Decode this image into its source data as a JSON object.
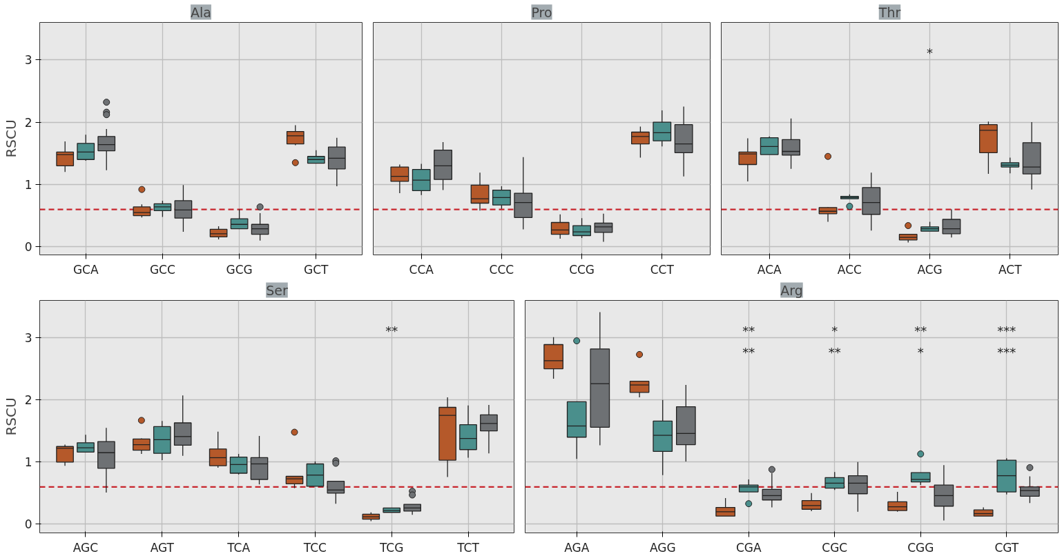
{
  "chart_data": [
    {
      "type": "box",
      "title": "Ala",
      "ylabel": "RSCU",
      "categories": [
        "GCA",
        "GCC",
        "GCG",
        "GCT"
      ],
      "ylim": [
        -0.13,
        3.6
      ],
      "yticks": [
        0,
        1,
        2,
        3
      ],
      "grid": true,
      "ref_lines": [
        {
          "axis": "y",
          "value": 0.6,
          "color": "#c8252c",
          "line_style": "dashed"
        }
      ],
      "series": [
        {
          "color": "#b5592a",
          "boxes": [
            {
              "low": 1.2,
              "q1": 1.3,
              "median": 1.48,
              "q3": 1.52,
              "high": 1.69
            },
            {
              "low": 0.47,
              "q1": 0.5,
              "median": 0.55,
              "q3": 0.64,
              "high": 0.68,
              "outliers": [
                0.92
              ]
            },
            {
              "low": 0.12,
              "q1": 0.16,
              "median": 0.21,
              "q3": 0.28,
              "high": 0.33
            },
            {
              "low": 1.63,
              "q1": 1.65,
              "median": 1.78,
              "q3": 1.85,
              "high": 1.95,
              "outliers": [
                1.35
              ]
            }
          ]
        },
        {
          "color": "#4a8f8c",
          "boxes": [
            {
              "low": 1.38,
              "q1": 1.4,
              "median": 1.52,
              "q3": 1.66,
              "high": 1.8
            },
            {
              "low": 0.48,
              "q1": 0.58,
              "median": 0.64,
              "q3": 0.69,
              "high": 0.74
            },
            {
              "low": 0.29,
              "q1": 0.29,
              "median": 0.36,
              "q3": 0.45,
              "high": 0.6
            },
            {
              "low": 1.34,
              "q1": 1.34,
              "median": 1.4,
              "q3": 1.45,
              "high": 1.55
            }
          ]
        },
        {
          "color": "#6e7174",
          "boxes": [
            {
              "low": 1.23,
              "q1": 1.54,
              "median": 1.64,
              "q3": 1.77,
              "high": 1.89,
              "outliers": [
                2.32,
                2.16,
                2.12
              ]
            },
            {
              "low": 0.24,
              "q1": 0.46,
              "median": 0.59,
              "q3": 0.74,
              "high": 0.99
            },
            {
              "low": 0.1,
              "q1": 0.2,
              "median": 0.29,
              "q3": 0.36,
              "high": 0.54,
              "outliers": [
                0.64
              ]
            },
            {
              "low": 0.97,
              "q1": 1.25,
              "median": 1.42,
              "q3": 1.6,
              "high": 1.75
            }
          ]
        }
      ]
    },
    {
      "type": "box",
      "title": "Pro",
      "categories": [
        "CCA",
        "CCC",
        "CCG",
        "CCT"
      ],
      "ylim": [
        -0.13,
        3.6
      ],
      "yticks": [
        0,
        1,
        2,
        3
      ],
      "grid": true,
      "tick_labels": "x",
      "ref_lines": [
        {
          "axis": "y",
          "value": 0.6,
          "color": "#c8252c",
          "line_style": "dashed"
        }
      ],
      "series": [
        {
          "color": "#b5592a",
          "boxes": [
            {
              "low": 0.86,
              "q1": 1.05,
              "median": 1.13,
              "q3": 1.28,
              "high": 1.32
            },
            {
              "low": 0.58,
              "q1": 0.7,
              "median": 0.77,
              "q3": 0.99,
              "high": 1.19
            },
            {
              "low": 0.13,
              "q1": 0.2,
              "median": 0.27,
              "q3": 0.39,
              "high": 0.52
            },
            {
              "low": 1.43,
              "q1": 1.65,
              "median": 1.77,
              "q3": 1.84,
              "high": 1.93
            }
          ]
        },
        {
          "color": "#4a8f8c",
          "boxes": [
            {
              "low": 0.83,
              "q1": 0.9,
              "median": 1.07,
              "q3": 1.24,
              "high": 1.33
            },
            {
              "low": 0.61,
              "q1": 0.67,
              "median": 0.79,
              "q3": 0.91,
              "high": 0.97
            },
            {
              "low": 0.14,
              "q1": 0.18,
              "median": 0.24,
              "q3": 0.34,
              "high": 0.46
            },
            {
              "low": 1.61,
              "q1": 1.7,
              "median": 1.83,
              "q3": 2.0,
              "high": 2.19
            }
          ]
        },
        {
          "color": "#6e7174",
          "boxes": [
            {
              "low": 0.91,
              "q1": 1.08,
              "median": 1.3,
              "q3": 1.55,
              "high": 1.68
            },
            {
              "low": 0.28,
              "q1": 0.47,
              "median": 0.71,
              "q3": 0.86,
              "high": 1.44
            },
            {
              "low": 0.08,
              "q1": 0.23,
              "median": 0.32,
              "q3": 0.38,
              "high": 0.53
            },
            {
              "low": 1.13,
              "q1": 1.51,
              "median": 1.65,
              "q3": 1.96,
              "high": 2.25
            }
          ]
        }
      ]
    },
    {
      "type": "box",
      "title": "Thr",
      "categories": [
        "ACA",
        "ACC",
        "ACG",
        "ACT"
      ],
      "ylim": [
        -0.13,
        3.6
      ],
      "yticks": [
        0,
        1,
        2,
        3
      ],
      "grid": true,
      "tick_labels": "x",
      "ref_lines": [
        {
          "axis": "y",
          "value": 0.6,
          "color": "#c8252c",
          "line_style": "dashed"
        }
      ],
      "annotations": [
        "*"
      ],
      "series": [
        {
          "color": "#b5592a",
          "boxes": [
            {
              "low": 1.05,
              "q1": 1.32,
              "median": 1.49,
              "q3": 1.52,
              "high": 1.74
            },
            {
              "low": 0.4,
              "q1": 0.53,
              "median": 0.57,
              "q3": 0.63,
              "high": 0.64,
              "outliers": [
                1.45
              ]
            },
            {
              "low": 0.07,
              "q1": 0.11,
              "median": 0.15,
              "q3": 0.2,
              "high": 0.2,
              "outliers": [
                0.34
              ]
            },
            {
              "low": 1.17,
              "q1": 1.51,
              "median": 1.87,
              "q3": 1.96,
              "high": 2.01
            }
          ]
        },
        {
          "color": "#4a8f8c",
          "boxes": [
            {
              "low": 1.48,
              "q1": 1.48,
              "median": 1.61,
              "q3": 1.75,
              "high": 1.77
            },
            {
              "low": 0.77,
              "q1": 0.77,
              "median": 0.79,
              "q3": 0.81,
              "high": 0.84,
              "outliers": [
                0.65
              ]
            },
            {
              "low": 0.25,
              "q1": 0.25,
              "median": 0.29,
              "q3": 0.32,
              "high": 0.4
            },
            {
              "low": 1.18,
              "q1": 1.28,
              "median": 1.31,
              "q3": 1.35,
              "high": 1.43
            }
          ]
        },
        {
          "color": "#6e7174",
          "boxes": [
            {
              "low": 1.25,
              "q1": 1.47,
              "median": 1.53,
              "q3": 1.72,
              "high": 2.06
            },
            {
              "low": 0.26,
              "q1": 0.52,
              "median": 0.71,
              "q3": 0.95,
              "high": 1.19
            },
            {
              "low": 0.15,
              "q1": 0.21,
              "median": 0.29,
              "q3": 0.44,
              "high": 0.6
            },
            {
              "low": 0.92,
              "q1": 1.17,
              "median": 1.28,
              "q3": 1.67,
              "high": 2.0
            }
          ]
        }
      ]
    },
    {
      "type": "box",
      "title": "Ser",
      "ylabel": "RSCU",
      "categories": [
        "AGC",
        "AGT",
        "TCA",
        "TCC",
        "TCG",
        "TCT"
      ],
      "ylim": [
        -0.14,
        3.6
      ],
      "yticks": [
        0,
        1,
        2,
        3
      ],
      "grid": true,
      "ref_lines": [
        {
          "axis": "y",
          "value": 0.6,
          "color": "#c8252c",
          "line_style": "dashed"
        }
      ],
      "annotations": [
        "**"
      ],
      "series": [
        {
          "color": "#b5592a",
          "boxes": [
            {
              "low": 0.94,
              "q1": 1.0,
              "median": 1.22,
              "q3": 1.25,
              "high": 1.28
            },
            {
              "low": 1.13,
              "q1": 1.19,
              "median": 1.28,
              "q3": 1.37,
              "high": 1.38,
              "outliers": [
                1.67
              ]
            },
            {
              "low": 0.91,
              "q1": 0.94,
              "median": 1.07,
              "q3": 1.21,
              "high": 1.49
            },
            {
              "low": 0.58,
              "q1": 0.65,
              "median": 0.73,
              "q3": 0.77,
              "high": 0.77,
              "outliers": [
                1.48
              ]
            },
            {
              "low": 0.05,
              "q1": 0.08,
              "median": 0.12,
              "q3": 0.16,
              "high": 0.19
            },
            {
              "low": 0.76,
              "q1": 1.03,
              "median": 1.75,
              "q3": 1.88,
              "high": 2.04
            }
          ]
        },
        {
          "color": "#4a8f8c",
          "boxes": [
            {
              "low": 1.16,
              "q1": 1.16,
              "median": 1.23,
              "q3": 1.31,
              "high": 1.44
            },
            {
              "low": 1.03,
              "q1": 1.14,
              "median": 1.36,
              "q3": 1.57,
              "high": 1.66
            },
            {
              "low": 0.8,
              "q1": 0.82,
              "median": 0.96,
              "q3": 1.08,
              "high": 1.13
            },
            {
              "low": 0.61,
              "q1": 0.61,
              "median": 0.79,
              "q3": 0.97,
              "high": 1.01
            },
            {
              "low": 0.19,
              "q1": 0.19,
              "median": 0.22,
              "q3": 0.26,
              "high": 0.26
            },
            {
              "low": 1.07,
              "q1": 1.2,
              "median": 1.38,
              "q3": 1.6,
              "high": 1.91
            }
          ]
        },
        {
          "color": "#6e7174",
          "boxes": [
            {
              "low": 0.51,
              "q1": 0.9,
              "median": 1.15,
              "q3": 1.33,
              "high": 1.55
            },
            {
              "low": 1.1,
              "q1": 1.27,
              "median": 1.41,
              "q3": 1.63,
              "high": 2.07
            },
            {
              "low": 0.64,
              "q1": 0.72,
              "median": 0.97,
              "q3": 1.07,
              "high": 1.42
            },
            {
              "low": 0.33,
              "q1": 0.5,
              "median": 0.55,
              "q3": 0.69,
              "high": 0.69,
              "outliers": [
                1.02,
                0.98
              ]
            },
            {
              "low": 0.15,
              "q1": 0.21,
              "median": 0.26,
              "q3": 0.32,
              "high": 0.32,
              "outliers": [
                0.53,
                0.47
              ]
            },
            {
              "low": 1.14,
              "q1": 1.5,
              "median": 1.62,
              "q3": 1.76,
              "high": 1.92
            }
          ]
        }
      ]
    },
    {
      "type": "box",
      "title": "Arg",
      "categories": [
        "AGA",
        "AGG",
        "CGA",
        "CGC",
        "CGG",
        "CGT"
      ],
      "ylim": [
        -0.14,
        3.6
      ],
      "yticks": [
        0,
        1,
        2,
        3
      ],
      "grid": true,
      "tick_labels": "x",
      "ref_lines": [
        {
          "axis": "y",
          "value": 0.6,
          "color": "#c8252c",
          "line_style": "dashed"
        }
      ],
      "annotations": [
        "**",
        "**",
        "*",
        "**",
        "**",
        "*",
        "***",
        "***"
      ],
      "series": [
        {
          "color": "#b5592a",
          "boxes": [
            {
              "low": 2.34,
              "q1": 2.5,
              "median": 2.63,
              "q3": 2.89,
              "high": 3.01
            },
            {
              "low": 2.04,
              "q1": 2.12,
              "median": 2.24,
              "q3": 2.3,
              "high": 2.3,
              "outliers": [
                2.73
              ]
            },
            {
              "low": 0.13,
              "q1": 0.13,
              "median": 0.2,
              "q3": 0.27,
              "high": 0.42
            },
            {
              "low": 0.21,
              "q1": 0.24,
              "median": 0.3,
              "q3": 0.38,
              "high": 0.5
            },
            {
              "low": 0.2,
              "q1": 0.22,
              "median": 0.28,
              "q3": 0.36,
              "high": 0.52
            },
            {
              "low": 0.13,
              "q1": 0.13,
              "median": 0.17,
              "q3": 0.23,
              "high": 0.27
            }
          ]
        },
        {
          "color": "#4a8f8c",
          "boxes": [
            {
              "low": 1.05,
              "q1": 1.4,
              "median": 1.58,
              "q3": 1.97,
              "high": 1.97,
              "outliers": [
                2.95
              ]
            },
            {
              "low": 0.79,
              "q1": 1.17,
              "median": 1.43,
              "q3": 1.66,
              "high": 2.0
            },
            {
              "low": 0.52,
              "q1": 0.52,
              "median": 0.6,
              "q3": 0.63,
              "high": 0.72,
              "outliers": [
                0.33
              ]
            },
            {
              "low": 0.55,
              "q1": 0.58,
              "median": 0.66,
              "q3": 0.75,
              "high": 0.84
            },
            {
              "low": 0.63,
              "q1": 0.68,
              "median": 0.72,
              "q3": 0.83,
              "high": 0.83,
              "outliers": [
                1.13
              ]
            },
            {
              "low": 0.48,
              "q1": 0.52,
              "median": 0.78,
              "q3": 1.03,
              "high": 1.06
            }
          ]
        },
        {
          "color": "#6e7174",
          "boxes": [
            {
              "low": 1.27,
              "q1": 1.56,
              "median": 2.26,
              "q3": 2.82,
              "high": 3.41
            },
            {
              "low": 1.01,
              "q1": 1.28,
              "median": 1.46,
              "q3": 1.89,
              "high": 2.24
            },
            {
              "low": 0.27,
              "q1": 0.39,
              "median": 0.46,
              "q3": 0.56,
              "high": 0.82,
              "outliers": [
                0.88
              ]
            },
            {
              "low": 0.2,
              "q1": 0.49,
              "median": 0.66,
              "q3": 0.78,
              "high": 1.0
            },
            {
              "low": 0.06,
              "q1": 0.29,
              "median": 0.46,
              "q3": 0.63,
              "high": 0.95
            },
            {
              "low": 0.34,
              "q1": 0.45,
              "median": 0.54,
              "q3": 0.6,
              "high": 0.77,
              "outliers": [
                0.91
              ]
            }
          ]
        }
      ]
    }
  ]
}
